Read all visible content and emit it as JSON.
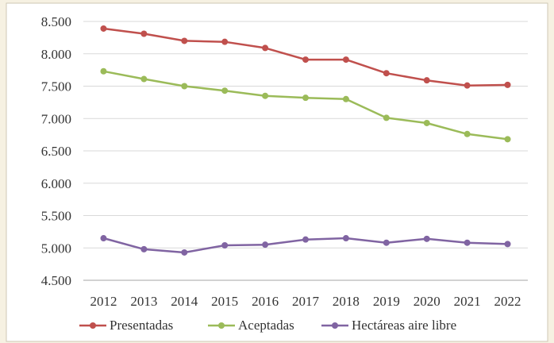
{
  "chart_data": {
    "type": "line",
    "title": "",
    "xlabel": "",
    "ylabel": "",
    "categories": [
      "2012",
      "2013",
      "2014",
      "2015",
      "2016",
      "2017",
      "2018",
      "2019",
      "2020",
      "2021",
      "2022"
    ],
    "ylim": [
      4500,
      8500
    ],
    "yticks": [
      4500,
      5000,
      5500,
      6000,
      6500,
      7000,
      7500,
      8000,
      8500
    ],
    "ytick_labels": [
      "4.500",
      "5.000",
      "5.500",
      "6.000",
      "6.500",
      "7.000",
      "7.500",
      "8.000",
      "8.500"
    ],
    "grid": true,
    "legend_position": "bottom",
    "series": [
      {
        "name": "Presentadas",
        "color": "#c0504d",
        "values": [
          8390,
          8310,
          8200,
          8185,
          8090,
          7910,
          7910,
          7700,
          7590,
          7510,
          7520
        ]
      },
      {
        "name": "Aceptadas",
        "color": "#9bbb59",
        "values": [
          7730,
          7610,
          7500,
          7430,
          7350,
          7320,
          7300,
          7010,
          6930,
          6760,
          6680
        ]
      },
      {
        "name": "Hectáreas aire libre",
        "color": "#8064a2",
        "values": [
          5150,
          4980,
          4930,
          5040,
          5050,
          5130,
          5150,
          5080,
          5140,
          5080,
          5060
        ]
      }
    ]
  }
}
